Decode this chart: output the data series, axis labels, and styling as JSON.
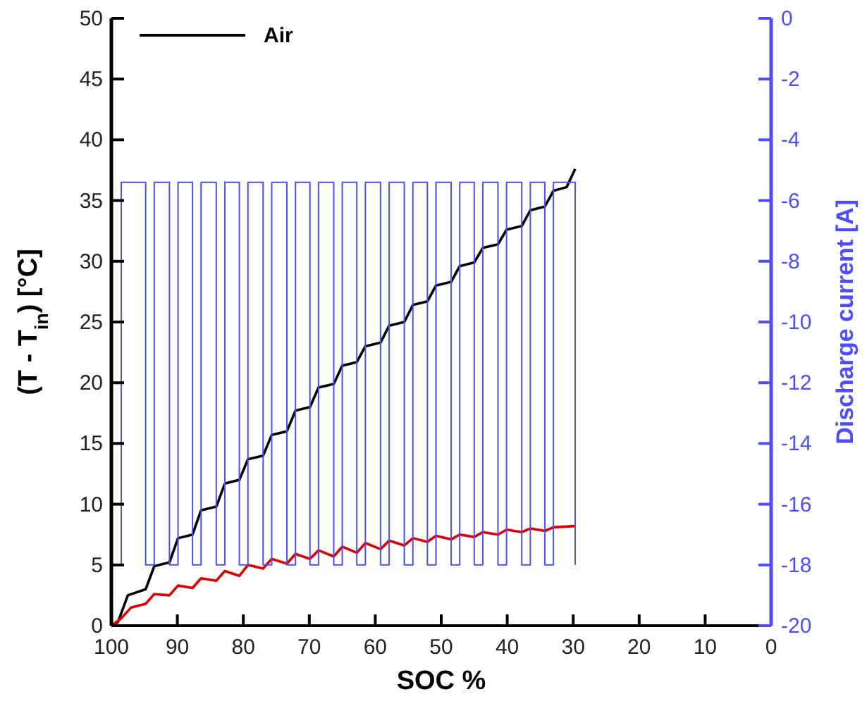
{
  "chart_data": {
    "type": "line",
    "xlabel": "SOC %",
    "ylabel": "(T - T$_{in}$)  [°C]",
    "y2label": "Discharge current [A]",
    "xlim": [
      100,
      0
    ],
    "xticks": [
      100,
      90,
      80,
      70,
      60,
      50,
      40,
      30,
      20,
      10,
      0
    ],
    "ylim": [
      0,
      50
    ],
    "yticks": [
      0,
      5,
      10,
      15,
      20,
      25,
      30,
      35,
      40,
      45,
      50
    ],
    "y2lim": [
      -20,
      0
    ],
    "y2ticks": [
      -20,
      -18,
      -16,
      -14,
      -12,
      -10,
      -8,
      -6,
      -4,
      -2,
      0
    ],
    "legend": "top left",
    "grid": false,
    "marker": "none",
    "line_style": "solid",
    "series": [
      {
        "name": "Air",
        "color": "#000000",
        "x": [
          100,
          99,
          97.5,
          94.8,
          93.5,
          91.2,
          89.9,
          87.7,
          86.4,
          84.1,
          82.8,
          80.6,
          79.3,
          77.0,
          75.7,
          73.4,
          72.1,
          69.9,
          68.6,
          66.3,
          65.0,
          62.8,
          61.5,
          59.2,
          57.9,
          55.6,
          54.3,
          52.1,
          50.8,
          48.5,
          47.2,
          45.0,
          43.7,
          41.4,
          40.1,
          37.8,
          36.5,
          34.3,
          33.0,
          31.0,
          29.7
        ],
        "values": [
          0,
          0.3,
          2.5,
          3.0,
          4.9,
          5.2,
          7.2,
          7.5,
          9.5,
          9.8,
          11.7,
          12.0,
          13.7,
          14.0,
          15.7,
          16.0,
          17.7,
          18.0,
          19.6,
          19.9,
          21.4,
          21.7,
          23.0,
          23.3,
          24.7,
          25.0,
          26.4,
          26.7,
          28.0,
          28.3,
          29.6,
          29.9,
          31.1,
          31.4,
          32.6,
          32.9,
          34.2,
          34.5,
          35.8,
          36.1,
          37.6
        ]
      },
      {
        "color": "#e00000",
        "x": [
          100,
          98.5,
          97,
          94.8,
          93.5,
          91.2,
          89.9,
          87.7,
          86.4,
          84.1,
          82.8,
          80.6,
          79.3,
          77.0,
          75.7,
          73.4,
          72.1,
          69.9,
          68.6,
          66.3,
          65.0,
          62.8,
          61.5,
          59.2,
          57.9,
          55.6,
          54.3,
          52.1,
          50.8,
          48.5,
          47.2,
          45.0,
          43.7,
          41.4,
          40.1,
          37.8,
          36.5,
          34.3,
          33.0,
          29.7
        ],
        "values": [
          0,
          0.6,
          1.5,
          1.8,
          2.6,
          2.5,
          3.3,
          3.1,
          3.9,
          3.7,
          4.5,
          4.1,
          5.0,
          4.7,
          5.5,
          5.1,
          5.9,
          5.5,
          6.2,
          5.7,
          6.5,
          6.0,
          6.8,
          6.3,
          7.0,
          6.6,
          7.2,
          6.9,
          7.4,
          7.1,
          7.5,
          7.3,
          7.7,
          7.5,
          7.9,
          7.7,
          8.0,
          7.8,
          8.1,
          8.2
        ]
      },
      {
        "type": "step",
        "axis": "y2",
        "color": "#4d4dff",
        "x": [
          98.5,
          98.5,
          94.8,
          93.5,
          91.2,
          89.9,
          87.7,
          86.4,
          84.1,
          82.8,
          80.6,
          79.3,
          77.0,
          75.7,
          73.4,
          72.1,
          69.9,
          68.6,
          66.3,
          65.0,
          62.8,
          61.5,
          59.2,
          57.9,
          55.6,
          54.3,
          52.1,
          50.8,
          48.5,
          47.2,
          45.0,
          43.7,
          41.4,
          40.1,
          37.8,
          36.5,
          34.3,
          33.0,
          29.7
        ],
        "values": [
          -18,
          -5.4,
          -18,
          -5.4,
          -18,
          -5.4,
          -18,
          -5.4,
          -18,
          -5.4,
          -18,
          -5.4,
          -18,
          -5.4,
          -18,
          -5.4,
          -18,
          -5.4,
          -18,
          -5.4,
          -18,
          -5.4,
          -18,
          -5.4,
          -18,
          -5.4,
          -18,
          -5.4,
          -18,
          -5.4,
          -18,
          -5.4,
          -18,
          -5.4,
          -18,
          -5.4,
          -18,
          -5.4,
          -18
        ]
      }
    ]
  }
}
